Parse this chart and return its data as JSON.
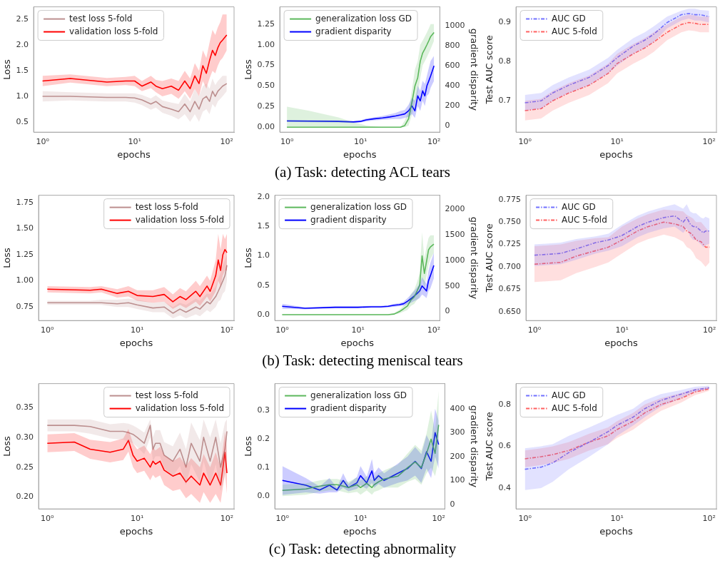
{
  "chart_data": [
    {
      "type": "line",
      "xlabel": "epochs",
      "ylabel": "Loss",
      "log": "x",
      "xlim": [
        0.8,
        120
      ],
      "xticks": [
        {
          "value": 1,
          "label": "10⁰"
        },
        {
          "value": 10,
          "label": "10¹"
        },
        {
          "value": 100,
          "label": "10²"
        }
      ],
      "ylim": [
        0.3,
        2.75
      ],
      "yticks": [
        0.5,
        {
          "value": 1,
          "label": "1.0"
        },
        1.5,
        {
          "value": 2,
          "label": "2.0"
        },
        2.5
      ],
      "grid": false,
      "legend": "top left",
      "x": [
        1,
        2,
        5,
        8,
        10,
        12,
        15,
        17,
        20,
        25,
        30,
        35,
        40,
        45,
        50,
        55,
        60,
        65,
        70,
        75,
        80,
        85,
        90,
        100
      ],
      "series": [
        {
          "name": "test loss 5-fold",
          "color": "#bc8f8f",
          "line_style": "solid",
          "values": [
            1.0,
            1.0,
            0.98,
            0.98,
            0.97,
            0.93,
            0.85,
            0.9,
            0.8,
            0.75,
            0.7,
            0.85,
            0.7,
            0.9,
            0.75,
            0.95,
            1.0,
            0.9,
            1.1,
            1.0,
            1.1,
            1.15,
            1.2,
            1.25
          ],
          "lower": [
            0.9,
            0.92,
            0.9,
            0.9,
            0.88,
            0.83,
            0.74,
            0.78,
            0.68,
            0.62,
            0.55,
            0.65,
            0.5,
            0.65,
            0.5,
            0.7,
            0.75,
            0.65,
            0.85,
            0.78,
            0.9,
            0.95,
            1.0,
            1.1
          ],
          "upper": [
            1.1,
            1.08,
            1.06,
            1.06,
            1.06,
            1.03,
            0.96,
            1.02,
            0.92,
            0.88,
            0.85,
            1.05,
            0.9,
            1.15,
            1.0,
            1.2,
            1.25,
            1.15,
            1.35,
            1.22,
            1.3,
            1.35,
            1.4,
            1.4
          ]
        },
        {
          "name": "validation loss 5-fold",
          "color": "#ff0000",
          "line_style": "solid",
          "values": [
            1.3,
            1.35,
            1.28,
            1.3,
            1.3,
            1.2,
            1.28,
            1.2,
            1.15,
            1.2,
            1.12,
            1.3,
            1.15,
            1.4,
            1.25,
            1.6,
            1.45,
            1.7,
            1.9,
            1.8,
            1.95,
            2.05,
            2.1,
            2.2
          ],
          "lower": [
            1.2,
            1.27,
            1.2,
            1.22,
            1.2,
            1.1,
            1.16,
            1.08,
            1.0,
            1.05,
            0.95,
            1.1,
            0.95,
            1.15,
            1.0,
            1.3,
            1.15,
            1.35,
            1.5,
            1.45,
            1.6,
            1.7,
            1.75,
            1.9
          ],
          "upper": [
            1.4,
            1.43,
            1.36,
            1.38,
            1.4,
            1.3,
            1.4,
            1.32,
            1.3,
            1.35,
            1.3,
            1.5,
            1.35,
            1.65,
            1.5,
            1.9,
            1.75,
            2.05,
            2.3,
            2.2,
            2.35,
            2.45,
            2.6,
            2.6
          ]
        }
      ]
    },
    {
      "type": "line",
      "xlabel": "epochs",
      "ylabel": "Loss",
      "y2label": "gradient disparity",
      "log": "x",
      "xlim": [
        0.8,
        120
      ],
      "xticks": [
        {
          "value": 1,
          "label": "10⁰"
        },
        {
          "value": 10,
          "label": "10¹"
        },
        {
          "value": 100,
          "label": "10²"
        }
      ],
      "ylim": [
        -0.06,
        1.46
      ],
      "yticks": [
        {
          "value": 0,
          "label": "0.00"
        },
        0.25,
        {
          "value": 0.5,
          "label": "0.50"
        },
        0.75,
        {
          "value": 1,
          "label": "1.00"
        },
        1.25
      ],
      "y2lim": [
        -62,
        1188
      ],
      "y2ticks": [
        0,
        200,
        400,
        600,
        800,
        1000
      ],
      "grid": false,
      "legend": "top left",
      "annotations": [
        "(a) Task: detecting ACL tears"
      ],
      "x": [
        1,
        2,
        5,
        8,
        10,
        12,
        15,
        20,
        25,
        30,
        35,
        40,
        45,
        50,
        55,
        60,
        65,
        70,
        75,
        80,
        85,
        90,
        100
      ],
      "series": [
        {
          "name": "generalization loss GD",
          "color": "#5cb85c",
          "line_style": "solid",
          "values": [
            0,
            0,
            0,
            0,
            0,
            0,
            0,
            0,
            0,
            0,
            0,
            0.02,
            0.1,
            0.3,
            0.5,
            0.6,
            0.8,
            0.9,
            0.95,
            1.0,
            1.05,
            1.1,
            1.15
          ],
          "lower": [
            0,
            0,
            0,
            0,
            0,
            0,
            0,
            0,
            0,
            0,
            0,
            0,
            0.02,
            0.15,
            0.3,
            0.4,
            0.6,
            0.75,
            0.8,
            0.85,
            0.9,
            0.95,
            1.05
          ],
          "upper": [
            0.25,
            0.2,
            0.12,
            0.06,
            0.04,
            0.02,
            0.01,
            0,
            0,
            0,
            0,
            0.08,
            0.2,
            0.45,
            0.7,
            0.8,
            1.0,
            1.05,
            1.1,
            1.15,
            1.2,
            1.25,
            1.25
          ]
        },
        {
          "name": "gradient disparity",
          "color": "#0000ff",
          "axis": "y2",
          "line_style": "solid",
          "values": [
            50,
            48,
            45,
            40,
            45,
            60,
            70,
            80,
            90,
            100,
            110,
            120,
            150,
            200,
            150,
            300,
            250,
            350,
            300,
            400,
            450,
            500,
            600
          ],
          "lower": [
            40,
            38,
            35,
            30,
            35,
            45,
            55,
            60,
            65,
            70,
            70,
            80,
            90,
            120,
            80,
            200,
            150,
            250,
            200,
            300,
            320,
            380,
            450
          ],
          "upper": [
            60,
            58,
            55,
            50,
            55,
            75,
            85,
            100,
            115,
            130,
            150,
            160,
            210,
            280,
            250,
            400,
            350,
            450,
            420,
            500,
            580,
            650,
            700
          ]
        }
      ]
    },
    {
      "type": "line",
      "xlabel": "epochs",
      "ylabel": "Test AUC score",
      "log": "x",
      "xlim": [
        0.8,
        120
      ],
      "xticks": [
        {
          "value": 1,
          "label": "10⁰"
        },
        {
          "value": 10,
          "label": "10¹"
        },
        {
          "value": 100,
          "label": "10²"
        }
      ],
      "ylim": [
        0.62,
        0.94
      ],
      "yticks": [
        0.7,
        0.8,
        0.9
      ],
      "grid": false,
      "legend": "top left",
      "x": [
        1,
        1.5,
        2,
        3,
        5,
        8,
        10,
        15,
        20,
        25,
        35,
        50,
        60,
        70,
        80,
        100
      ],
      "series": [
        {
          "name": "AUC GD",
          "color": "#7070ff",
          "line_style": "dashed",
          "values": [
            0.695,
            0.7,
            0.72,
            0.74,
            0.76,
            0.79,
            0.81,
            0.84,
            0.855,
            0.87,
            0.9,
            0.92,
            0.923,
            0.92,
            0.92,
            0.915
          ],
          "lower": [
            0.675,
            0.68,
            0.7,
            0.72,
            0.74,
            0.77,
            0.79,
            0.82,
            0.835,
            0.85,
            0.885,
            0.905,
            0.91,
            0.905,
            0.905,
            0.9
          ],
          "upper": [
            0.715,
            0.72,
            0.74,
            0.76,
            0.78,
            0.81,
            0.83,
            0.86,
            0.875,
            0.89,
            0.915,
            0.93,
            0.935,
            0.935,
            0.932,
            0.93
          ]
        },
        {
          "name": "AUC 5-fold",
          "color": "#ff6060",
          "line_style": "dashed",
          "values": [
            0.675,
            0.68,
            0.7,
            0.72,
            0.74,
            0.77,
            0.795,
            0.82,
            0.835,
            0.85,
            0.875,
            0.895,
            0.9,
            0.898,
            0.895,
            0.895
          ],
          "lower": [
            0.65,
            0.655,
            0.675,
            0.695,
            0.715,
            0.745,
            0.77,
            0.795,
            0.81,
            0.825,
            0.855,
            0.875,
            0.88,
            0.878,
            0.875,
            0.875
          ],
          "upper": [
            0.7,
            0.705,
            0.725,
            0.745,
            0.765,
            0.795,
            0.82,
            0.845,
            0.86,
            0.875,
            0.895,
            0.915,
            0.92,
            0.918,
            0.915,
            0.915
          ]
        }
      ]
    },
    {
      "type": "line",
      "xlabel": "epochs",
      "ylabel": "Loss",
      "log": "x",
      "xlim": [
        0.8,
        120
      ],
      "xticks": [
        {
          "value": 1,
          "label": "10⁰"
        },
        {
          "value": 10,
          "label": "10¹"
        },
        {
          "value": 100,
          "label": "10²"
        }
      ],
      "ylim": [
        0.62,
        1.82
      ],
      "yticks": [
        0.75,
        {
          "value": 1,
          "label": "1.00"
        },
        1.25,
        {
          "value": 1.5,
          "label": "1.50"
        },
        1.75
      ],
      "grid": false,
      "legend": "top right",
      "x": [
        1,
        3,
        4,
        6,
        8,
        10,
        15,
        20,
        25,
        30,
        35,
        45,
        50,
        60,
        65,
        75,
        80,
        85,
        90,
        95,
        100
      ],
      "series": [
        {
          "name": "test loss 5-fold",
          "color": "#bc8f8f",
          "line_style": "solid",
          "values": [
            0.79,
            0.79,
            0.79,
            0.78,
            0.79,
            0.77,
            0.74,
            0.75,
            0.69,
            0.73,
            0.7,
            0.75,
            0.73,
            0.8,
            0.78,
            0.85,
            0.9,
            0.95,
            1.0,
            1.05,
            1.15
          ],
          "lower": [
            0.77,
            0.77,
            0.77,
            0.75,
            0.75,
            0.73,
            0.7,
            0.7,
            0.64,
            0.67,
            0.64,
            0.68,
            0.66,
            0.72,
            0.7,
            0.75,
            0.8,
            0.82,
            0.88,
            0.9,
            1.0
          ],
          "upper": [
            0.81,
            0.81,
            0.82,
            0.82,
            0.83,
            0.82,
            0.79,
            0.8,
            0.75,
            0.79,
            0.77,
            0.83,
            0.81,
            0.88,
            0.87,
            0.95,
            1.02,
            1.08,
            1.15,
            1.2,
            1.25
          ]
        },
        {
          "name": "validation loss 5-fold",
          "color": "#ff0000",
          "line_style": "solid",
          "values": [
            0.92,
            0.91,
            0.92,
            0.88,
            0.9,
            0.86,
            0.85,
            0.87,
            0.8,
            0.85,
            0.82,
            0.9,
            0.85,
            0.95,
            0.9,
            1.05,
            1.2,
            1.1,
            1.25,
            1.3,
            1.27
          ],
          "lower": [
            0.89,
            0.88,
            0.89,
            0.84,
            0.85,
            0.81,
            0.79,
            0.8,
            0.73,
            0.77,
            0.74,
            0.8,
            0.76,
            0.85,
            0.8,
            0.9,
            1.0,
            0.95,
            1.05,
            1.1,
            1.1
          ],
          "upper": [
            0.95,
            0.94,
            0.95,
            0.92,
            0.95,
            0.91,
            0.91,
            0.94,
            0.87,
            0.93,
            0.9,
            1.0,
            0.95,
            1.05,
            1.0,
            1.2,
            1.45,
            1.3,
            1.45,
            1.4,
            1.45
          ]
        }
      ]
    },
    {
      "type": "line",
      "xlabel": "epochs",
      "ylabel": "Loss",
      "y2label": "gradient disparity",
      "log": "x",
      "xlim": [
        0.8,
        120
      ],
      "xticks": [
        {
          "value": 1,
          "label": "10⁰"
        },
        {
          "value": 10,
          "label": "10¹"
        },
        {
          "value": 100,
          "label": "10²"
        }
      ],
      "ylim": [
        -0.1,
        2.03
      ],
      "yticks": [
        {
          "value": 0,
          "label": "0.0"
        },
        0.5,
        {
          "value": 1,
          "label": "1.0"
        },
        1.5,
        {
          "value": 2,
          "label": "2.0"
        }
      ],
      "y2lim": [
        -180,
        2280
      ],
      "y2ticks": [
        0,
        500,
        1000,
        1500,
        2000
      ],
      "grid": false,
      "legend": "top left",
      "annotations": [
        "(b) Task: detecting meniscal tears"
      ],
      "x": [
        1,
        2,
        5,
        10,
        15,
        20,
        25,
        30,
        35,
        40,
        45,
        50,
        55,
        60,
        65,
        70,
        75,
        80,
        85,
        90,
        100
      ],
      "series": [
        {
          "name": "generalization loss GD",
          "color": "#5cb85c",
          "line_style": "solid",
          "values": [
            0,
            0,
            0,
            0,
            0,
            0,
            0,
            0.01,
            0.05,
            0.1,
            0.15,
            0.25,
            0.3,
            0.4,
            0.5,
            1.0,
            0.7,
            0.9,
            1.1,
            1.15,
            1.2
          ],
          "lower": [
            0,
            0,
            0,
            0,
            0,
            0,
            0,
            0,
            0.02,
            0.05,
            0.08,
            0.15,
            0.18,
            0.25,
            0.3,
            0.6,
            0.45,
            0.65,
            0.85,
            0.95,
            1.05
          ],
          "upper": [
            0.01,
            0.01,
            0.01,
            0.01,
            0.01,
            0.01,
            0.01,
            0.03,
            0.08,
            0.15,
            0.22,
            0.35,
            0.42,
            0.55,
            0.7,
            1.4,
            0.95,
            1.15,
            1.3,
            1.35,
            1.35
          ]
        },
        {
          "name": "gradient disparity",
          "color": "#0000ff",
          "axis": "y2",
          "line_style": "solid",
          "values": [
            100,
            60,
            80,
            80,
            90,
            90,
            100,
            120,
            130,
            150,
            200,
            250,
            300,
            350,
            400,
            500,
            450,
            400,
            600,
            700,
            900
          ],
          "lower": [
            50,
            40,
            60,
            60,
            70,
            70,
            80,
            90,
            100,
            110,
            140,
            170,
            200,
            230,
            260,
            330,
            300,
            260,
            400,
            450,
            650
          ],
          "upper": [
            150,
            80,
            100,
            100,
            110,
            110,
            120,
            150,
            160,
            190,
            260,
            330,
            400,
            470,
            540,
            670,
            600,
            540,
            800,
            950,
            1150
          ]
        }
      ]
    },
    {
      "type": "line",
      "xlabel": "epochs",
      "ylabel": "Test AUC score",
      "log": "x",
      "xlim": [
        0.8,
        120
      ],
      "xticks": [
        {
          "value": 1,
          "label": "10⁰"
        },
        {
          "value": 10,
          "label": "10¹"
        },
        {
          "value": 100,
          "label": "10²"
        }
      ],
      "ylim": [
        0.64,
        0.78
      ],
      "yticks": [
        {
          "value": 0.65,
          "label": "0.650"
        },
        0.675,
        {
          "value": 0.7,
          "label": "0.700"
        },
        0.725,
        {
          "value": 0.75,
          "label": "0.750"
        },
        0.775
      ],
      "grid": false,
      "legend": "top left",
      "x": [
        1,
        2,
        3,
        5,
        7,
        10,
        15,
        20,
        30,
        40,
        50,
        55,
        60,
        65,
        70,
        80,
        85,
        90,
        100
      ],
      "series": [
        {
          "name": "AUC GD",
          "color": "#7070ff",
          "line_style": "dashed",
          "values": [
            0.713,
            0.715,
            0.72,
            0.727,
            0.73,
            0.735,
            0.745,
            0.75,
            0.755,
            0.757,
            0.75,
            0.755,
            0.748,
            0.745,
            0.745,
            0.74,
            0.738,
            0.74,
            0.74
          ],
          "lower": [
            0.701,
            0.703,
            0.708,
            0.715,
            0.718,
            0.723,
            0.733,
            0.738,
            0.743,
            0.745,
            0.738,
            0.743,
            0.734,
            0.73,
            0.73,
            0.725,
            0.722,
            0.724,
            0.726
          ],
          "upper": [
            0.725,
            0.727,
            0.731,
            0.734,
            0.737,
            0.747,
            0.757,
            0.762,
            0.767,
            0.77,
            0.765,
            0.77,
            0.762,
            0.76,
            0.76,
            0.755,
            0.754,
            0.756,
            0.754
          ]
        },
        {
          "name": "AUC 5-fold",
          "color": "#ff6060",
          "line_style": "dashed",
          "values": [
            0.703,
            0.705,
            0.712,
            0.718,
            0.722,
            0.73,
            0.74,
            0.745,
            0.75,
            0.748,
            0.745,
            0.74,
            0.738,
            0.735,
            0.73,
            0.728,
            0.725,
            0.722,
            0.722
          ],
          "lower": [
            0.683,
            0.685,
            0.693,
            0.7,
            0.705,
            0.715,
            0.726,
            0.731,
            0.736,
            0.733,
            0.728,
            0.722,
            0.72,
            0.716,
            0.71,
            0.706,
            0.703,
            0.7,
            0.705
          ],
          "upper": [
            0.723,
            0.725,
            0.729,
            0.732,
            0.733,
            0.745,
            0.754,
            0.759,
            0.764,
            0.763,
            0.762,
            0.758,
            0.756,
            0.754,
            0.75,
            0.75,
            0.747,
            0.744,
            0.739
          ]
        }
      ]
    },
    {
      "type": "line",
      "xlabel": "epochs",
      "ylabel": "Loss",
      "log": "x",
      "xlim": [
        0.8,
        120
      ],
      "xticks": [
        {
          "value": 1,
          "label": "10⁰"
        },
        {
          "value": 10,
          "label": "10¹"
        },
        {
          "value": 100,
          "label": "10²"
        }
      ],
      "ylim": [
        0.18,
        0.39
      ],
      "yticks": [
        {
          "value": 0.2,
          "label": "0.20"
        },
        0.25,
        {
          "value": 0.3,
          "label": "0.30"
        },
        0.35
      ],
      "grid": false,
      "legend": "top right",
      "x": [
        1,
        2,
        3,
        5,
        7,
        8,
        9,
        10,
        12,
        14,
        15,
        16,
        18,
        20,
        25,
        30,
        35,
        40,
        50,
        55,
        65,
        75,
        85,
        95,
        100
      ],
      "series": [
        {
          "name": "test loss 5-fold",
          "color": "#bc8f8f",
          "line_style": "solid",
          "values": [
            0.32,
            0.32,
            0.318,
            0.31,
            0.31,
            0.308,
            0.305,
            0.3,
            0.29,
            0.32,
            0.28,
            0.29,
            0.29,
            0.27,
            0.26,
            0.28,
            0.25,
            0.29,
            0.26,
            0.3,
            0.26,
            0.3,
            0.25,
            0.28,
            0.31
          ],
          "lower": [
            0.31,
            0.31,
            0.306,
            0.298,
            0.296,
            0.293,
            0.29,
            0.284,
            0.272,
            0.3,
            0.26,
            0.268,
            0.268,
            0.248,
            0.235,
            0.252,
            0.22,
            0.255,
            0.225,
            0.26,
            0.22,
            0.255,
            0.21,
            0.235,
            0.26
          ],
          "upper": [
            0.33,
            0.33,
            0.33,
            0.322,
            0.324,
            0.323,
            0.32,
            0.316,
            0.308,
            0.33,
            0.3,
            0.312,
            0.312,
            0.292,
            0.285,
            0.308,
            0.28,
            0.325,
            0.295,
            0.33,
            0.3,
            0.33,
            0.29,
            0.325,
            0.33
          ]
        },
        {
          "name": "validation loss 5-fold",
          "color": "#ff0000",
          "line_style": "solid",
          "values": [
            0.29,
            0.292,
            0.28,
            0.275,
            0.28,
            0.295,
            0.27,
            0.26,
            0.265,
            0.25,
            0.26,
            0.255,
            0.26,
            0.245,
            0.235,
            0.24,
            0.225,
            0.235,
            0.22,
            0.24,
            0.22,
            0.24,
            0.22,
            0.275,
            0.24
          ],
          "lower": [
            0.275,
            0.277,
            0.264,
            0.258,
            0.262,
            0.276,
            0.25,
            0.24,
            0.244,
            0.228,
            0.237,
            0.232,
            0.236,
            0.22,
            0.21,
            0.213,
            0.198,
            0.205,
            0.19,
            0.208,
            0.19,
            0.205,
            0.19,
            0.24,
            0.205
          ],
          "upper": [
            0.305,
            0.307,
            0.296,
            0.292,
            0.298,
            0.314,
            0.29,
            0.28,
            0.286,
            0.272,
            0.283,
            0.278,
            0.284,
            0.27,
            0.26,
            0.267,
            0.252,
            0.265,
            0.25,
            0.272,
            0.25,
            0.275,
            0.25,
            0.31,
            0.275
          ]
        }
      ]
    },
    {
      "type": "line",
      "xlabel": "epochs",
      "ylabel": "Loss",
      "y2label": "gradient disparity",
      "log": "x",
      "xlim": [
        0.8,
        120
      ],
      "xticks": [
        {
          "value": 1,
          "label": "10⁰"
        },
        {
          "value": 10,
          "label": "10¹"
        },
        {
          "value": 100,
          "label": "10²"
        }
      ],
      "ylim": [
        -0.045,
        0.395
      ],
      "yticks": [
        {
          "value": 0,
          "label": "0.0"
        },
        0.1,
        0.2,
        0.3
      ],
      "y2lim": [
        -19,
        505
      ],
      "y2ticks": [
        0,
        100,
        200,
        300,
        400
      ],
      "grid": false,
      "legend": "top left",
      "annotations": [
        "(c) Task: detecting abnormality"
      ],
      "x": [
        1,
        2,
        3,
        4,
        5,
        6,
        7,
        9,
        10,
        12,
        14,
        15,
        17,
        20,
        30,
        40,
        50,
        60,
        70,
        80,
        90,
        100
      ],
      "series": [
        {
          "name": "generalization loss GD",
          "color": "#5cb85c",
          "line_style": "solid",
          "values": [
            0.02,
            0.025,
            0.035,
            0.04,
            0.04,
            0.035,
            0.03,
            0.04,
            0.03,
            0.045,
            0.03,
            0.04,
            0.05,
            0.06,
            0.07,
            0.1,
            0.12,
            0.1,
            0.15,
            0.2,
            0.15,
            0.25
          ],
          "lower": [
            0.0,
            0.005,
            0.015,
            0.02,
            0.02,
            0.015,
            0.01,
            0.015,
            0.005,
            0.02,
            0.005,
            0.015,
            0.02,
            0.03,
            0.03,
            0.05,
            0.06,
            0.04,
            0.08,
            0.1,
            0.07,
            0.13
          ],
          "upper": [
            0.04,
            0.045,
            0.055,
            0.06,
            0.06,
            0.055,
            0.05,
            0.065,
            0.055,
            0.07,
            0.055,
            0.065,
            0.08,
            0.09,
            0.11,
            0.15,
            0.18,
            0.16,
            0.22,
            0.3,
            0.23,
            0.37
          ]
        },
        {
          "name": "gradient disparity",
          "color": "#0000ff",
          "axis": "y2",
          "line_style": "solid",
          "values": [
            100,
            80,
            60,
            80,
            60,
            100,
            70,
            90,
            120,
            90,
            140,
            100,
            120,
            100,
            130,
            150,
            180,
            150,
            220,
            180,
            300,
            250
          ],
          "lower": [
            40,
            50,
            45,
            50,
            50,
            70,
            55,
            65,
            80,
            65,
            90,
            70,
            85,
            70,
            90,
            100,
            120,
            90,
            150,
            110,
            200,
            150
          ],
          "upper": [
            160,
            110,
            75,
            110,
            70,
            130,
            85,
            115,
            160,
            115,
            190,
            130,
            155,
            130,
            170,
            200,
            240,
            210,
            290,
            250,
            400,
            350
          ]
        }
      ]
    },
    {
      "type": "line",
      "xlabel": "epochs",
      "ylabel": "Test AUC score",
      "log": "x",
      "xlim": [
        0.8,
        120
      ],
      "xticks": [
        {
          "value": 1,
          "label": "10⁰"
        },
        {
          "value": 10,
          "label": "10¹"
        },
        {
          "value": 100,
          "label": "10²"
        }
      ],
      "ylim": [
        0.3,
        0.9
      ],
      "yticks": [
        0.4,
        0.6,
        0.8
      ],
      "grid": false,
      "legend": "top left",
      "x": [
        1,
        1.5,
        2,
        3,
        5,
        8,
        10,
        15,
        20,
        30,
        50,
        70,
        100
      ],
      "series": [
        {
          "name": "AUC GD",
          "color": "#7070ff",
          "line_style": "dashed",
          "values": [
            0.49,
            0.5,
            0.52,
            0.57,
            0.62,
            0.67,
            0.7,
            0.74,
            0.78,
            0.82,
            0.85,
            0.87,
            0.88
          ],
          "lower": [
            0.39,
            0.4,
            0.43,
            0.49,
            0.55,
            0.61,
            0.65,
            0.7,
            0.74,
            0.79,
            0.83,
            0.86,
            0.875
          ],
          "upper": [
            0.59,
            0.6,
            0.61,
            0.65,
            0.69,
            0.73,
            0.75,
            0.78,
            0.82,
            0.85,
            0.87,
            0.885,
            0.89
          ]
        },
        {
          "name": "AUC 5-fold",
          "color": "#ff6060",
          "line_style": "dashed",
          "values": [
            0.54,
            0.55,
            0.56,
            0.58,
            0.62,
            0.65,
            0.68,
            0.72,
            0.76,
            0.8,
            0.83,
            0.86,
            0.875
          ],
          "lower": [
            0.5,
            0.51,
            0.52,
            0.54,
            0.58,
            0.61,
            0.64,
            0.68,
            0.72,
            0.77,
            0.81,
            0.845,
            0.865
          ],
          "upper": [
            0.58,
            0.59,
            0.6,
            0.62,
            0.66,
            0.69,
            0.72,
            0.76,
            0.8,
            0.83,
            0.855,
            0.875,
            0.885
          ]
        }
      ]
    }
  ]
}
